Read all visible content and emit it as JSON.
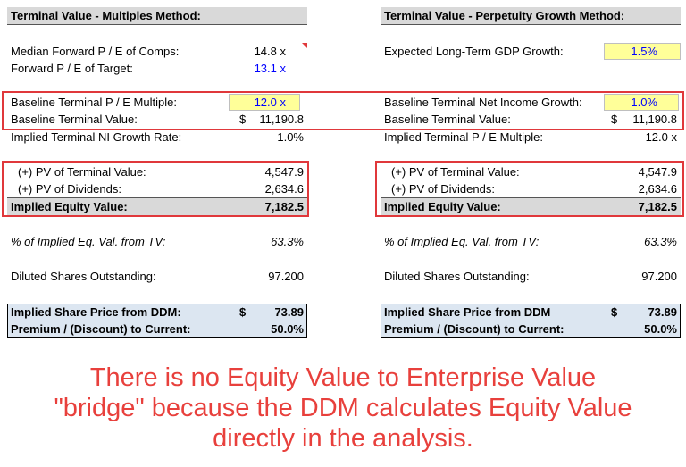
{
  "left": {
    "header": "Terminal Value - Multiples Method:",
    "rows": [
      {
        "label": "Median Forward P / E of Comps:",
        "value": "14.8 x"
      },
      {
        "label": "Forward P / E of Target:",
        "value": "13.1 x"
      },
      {
        "label": "Baseline Terminal P / E Multiple:",
        "value": "12.0 x"
      },
      {
        "label": "Baseline Terminal Value:",
        "currency": "$",
        "value": "11,190.8"
      },
      {
        "label": "Implied Terminal NI Growth Rate:",
        "value": "1.0%"
      }
    ],
    "pv_rows": [
      {
        "label": "(+) PV of Terminal Value:",
        "value": "4,547.9"
      },
      {
        "label": "(+) PV of Dividends:",
        "value": "2,634.6"
      },
      {
        "label": "Implied Equity Value:",
        "value": "7,182.5"
      }
    ],
    "pct_tv": {
      "label": "% of Implied Eq. Val. from TV:",
      "value": "63.3%"
    },
    "shares": {
      "label": "Diluted Shares Outstanding:",
      "value": "97.200"
    },
    "result": [
      {
        "label": "Implied Share Price from DDM:",
        "currency": "$",
        "value": "73.89"
      },
      {
        "label": "Premium / (Discount) to Current:",
        "value": "50.0%"
      }
    ]
  },
  "right": {
    "header": "Terminal Value - Perpetuity Growth Method:",
    "rows": [
      {
        "label": "Expected Long-Term GDP Growth:",
        "value": "1.5%"
      },
      {
        "label": "Baseline Terminal Net Income Growth:",
        "value": "1.0%"
      },
      {
        "label": "Baseline Terminal Value:",
        "currency": "$",
        "value": "11,190.8"
      },
      {
        "label": "Implied Terminal P / E Multiple:",
        "value": "12.0 x"
      }
    ],
    "pv_rows": [
      {
        "label": "(+) PV of Terminal Value:",
        "value": "4,547.9"
      },
      {
        "label": "(+) PV of Dividends:",
        "value": "2,634.6"
      },
      {
        "label": "Implied Equity Value:",
        "value": "7,182.5"
      }
    ],
    "pct_tv": {
      "label": "% of Implied Eq. Val. from TV:",
      "value": "63.3%"
    },
    "shares": {
      "label": "Diluted Shares Outstanding:",
      "value": "97.200"
    },
    "result": [
      {
        "label": "Implied Share Price from DDM",
        "currency": "$",
        "value": "73.89"
      },
      {
        "label": "Premium / (Discount) to Current:",
        "value": "50.0%"
      }
    ]
  },
  "footnote": [
    "There is no Equity Value to Enterprise Value",
    "\"bridge\" because the DDM calculates Equity Value",
    "directly in the analysis."
  ],
  "colors": {
    "highlight_red": "#e0383b",
    "input_yellow": "#ffff99",
    "header_gray": "#d9d9d9",
    "result_blue": "#dce6f1",
    "input_text_blue": "#0000ff"
  }
}
